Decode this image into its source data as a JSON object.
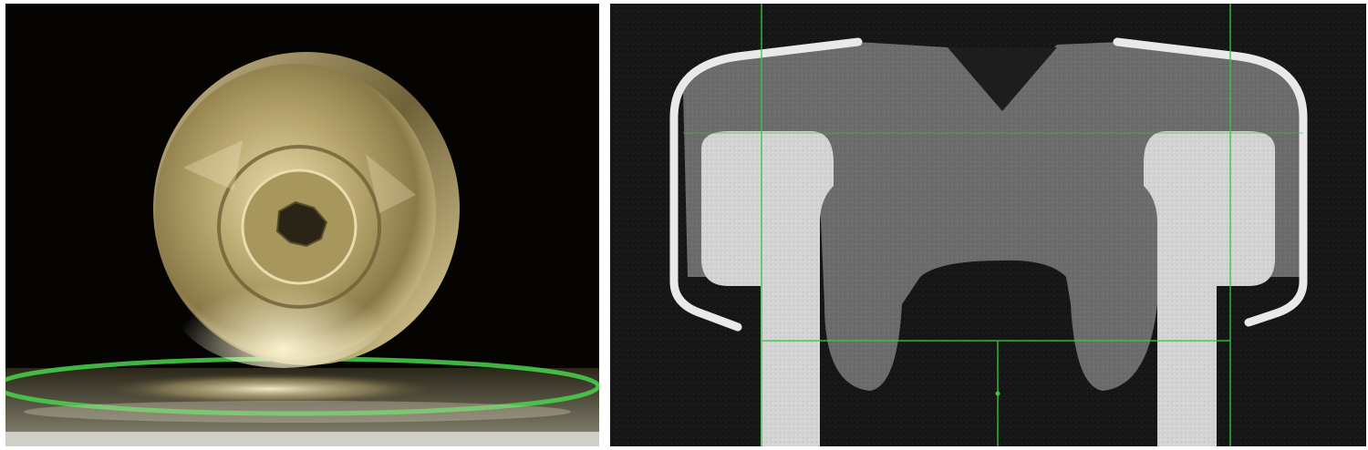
{
  "figure": {
    "panels": [
      {
        "id": "photo",
        "description_name": "coin-cell-photo"
      },
      {
        "id": "ct",
        "description_name": "ct-cross-section"
      }
    ]
  },
  "colors": {
    "background": "#ffffff",
    "photo_background": "#050403",
    "metal_highlight": "#f4e6b8",
    "metal_mid": "#b9a871",
    "metal_dark": "#5a4d2c",
    "reflection_green": "#49d34d",
    "ct_background": "#151515",
    "ct_casing": "#e7e7e7",
    "ct_gray_fill": "#6b6b6b",
    "ct_pin": "#d0d0d0",
    "ct_crosshair": "#39c83d"
  }
}
